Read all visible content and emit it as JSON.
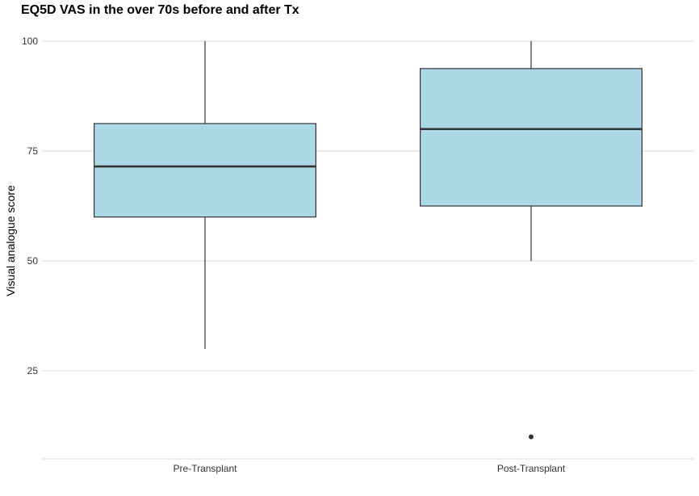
{
  "chart_data": {
    "type": "box",
    "title": "EQ5D VAS in the over 70s before and after Tx",
    "xlabel": "",
    "ylabel": "Visual analogue score",
    "ylim": [
      5,
      102
    ],
    "yticks": [
      25,
      50,
      75,
      100
    ],
    "ytick_labels": [
      "25",
      "50",
      "75",
      "100"
    ],
    "grid": true,
    "legend": "none",
    "categories": [
      "Pre-Transplant",
      "Post-Transplant"
    ],
    "boxes": [
      {
        "category": "Pre-Transplant",
        "whisker_low": 30,
        "q1": 60,
        "median": 71.5,
        "q3": 81.25,
        "whisker_high": 100,
        "outliers": []
      },
      {
        "category": "Post-Transplant",
        "whisker_low": 50,
        "q1": 62.5,
        "median": 80,
        "q3": 93.75,
        "whisker_high": 100,
        "outliers": [
          10
        ]
      }
    ],
    "colors": {
      "box_fill": "#add8e6",
      "box_stroke": "#333333",
      "median": "#333333",
      "grid": "#d9d9d9",
      "outlier": "#333333"
    }
  }
}
